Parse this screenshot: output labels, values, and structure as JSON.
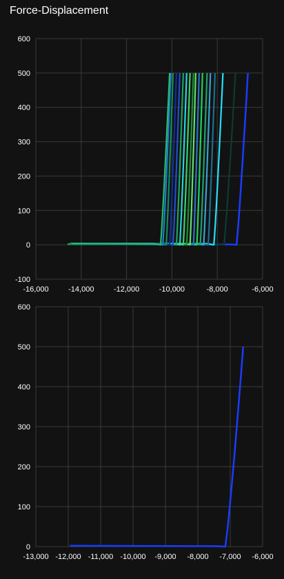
{
  "title": "Force-Displacement",
  "colors": {
    "background": "#121212",
    "grid": "#3a3a3a",
    "text": "#ffffff"
  },
  "chart_data": [
    {
      "type": "line",
      "title": "Force-Displacement",
      "xlabel": "",
      "ylabel": "",
      "xlim": [
        -16000,
        -6000
      ],
      "ylim": [
        -100,
        600
      ],
      "x_ticks": [
        -16000,
        -14000,
        -12000,
        -10000,
        -8000,
        -6000
      ],
      "y_ticks": [
        -100,
        0,
        100,
        200,
        300,
        400,
        500,
        600
      ],
      "x_tick_labels": [
        "-16,000",
        "-14,000",
        "-12,000",
        "-10,000",
        "-8,000",
        "-6,000"
      ],
      "y_tick_labels": [
        "-100",
        "0",
        "100",
        "200",
        "300",
        "400",
        "500",
        "600"
      ],
      "grid": true,
      "legend": "none",
      "series": [
        {
          "color": "#1a3cff",
          "start": -12000,
          "knee": -7150,
          "end": -6650
        },
        {
          "color": "#0b3b35",
          "start": -13000,
          "knee": -7700,
          "end": -7200
        },
        {
          "color": "#22e0ff",
          "start": -13500,
          "knee": -8150,
          "end": -7750
        },
        {
          "color": "#1d6f8f",
          "start": -14000,
          "knee": -8400,
          "end": -8100
        },
        {
          "color": "#3aa0d0",
          "start": -14200,
          "knee": -8600,
          "end": -8300
        },
        {
          "color": "#20a070",
          "start": -14500,
          "knee": -8750,
          "end": -8450
        },
        {
          "color": "#1fd45a",
          "start": -14600,
          "knee": -8900,
          "end": -8650
        },
        {
          "color": "#2a74c8",
          "start": -14400,
          "knee": -9050,
          "end": -8800
        },
        {
          "color": "#63e06b",
          "start": -14300,
          "knee": -9200,
          "end": -8950
        },
        {
          "color": "#1e8f3a",
          "start": -14500,
          "knee": -9350,
          "end": -9050
        },
        {
          "color": "#3ad16c",
          "start": -14100,
          "knee": -9500,
          "end": -9200
        },
        {
          "color": "#2ad2e0",
          "start": -13800,
          "knee": -9650,
          "end": -9350
        },
        {
          "color": "#1aa85c",
          "start": -14600,
          "knee": -9800,
          "end": -9500
        },
        {
          "color": "#1e4fd0",
          "start": -14200,
          "knee": -9950,
          "end": -9650
        },
        {
          "color": "#0f2f9a",
          "start": -13900,
          "knee": -10100,
          "end": -9800
        },
        {
          "color": "#118f5a",
          "start": -14500,
          "knee": -10250,
          "end": -9950
        },
        {
          "color": "#1b7fd0",
          "start": -14000,
          "knee": -10400,
          "end": -10050
        },
        {
          "color": "#28b870",
          "start": -14400,
          "knee": -10500,
          "end": -10100
        }
      ]
    },
    {
      "type": "line",
      "xlabel": "",
      "ylabel": "",
      "xlim": [
        -13000,
        -6000
      ],
      "ylim": [
        0,
        600
      ],
      "x_ticks": [
        -13000,
        -12000,
        -11000,
        -10000,
        -9000,
        -8000,
        -7000,
        -6000
      ],
      "y_ticks": [
        0,
        100,
        200,
        300,
        400,
        500,
        600
      ],
      "x_tick_labels": [
        "-13,000",
        "-12,000",
        "-11,000",
        "-10,000",
        "-9,000",
        "-8,000",
        "-7,000",
        "-6,000"
      ],
      "y_tick_labels": [
        "0",
        "100",
        "200",
        "300",
        "400",
        "500",
        "600"
      ],
      "grid": true,
      "legend": "none",
      "series": [
        {
          "color": "#1a3cff",
          "start": -11950,
          "knee": -7150,
          "end": -6600
        }
      ]
    }
  ]
}
